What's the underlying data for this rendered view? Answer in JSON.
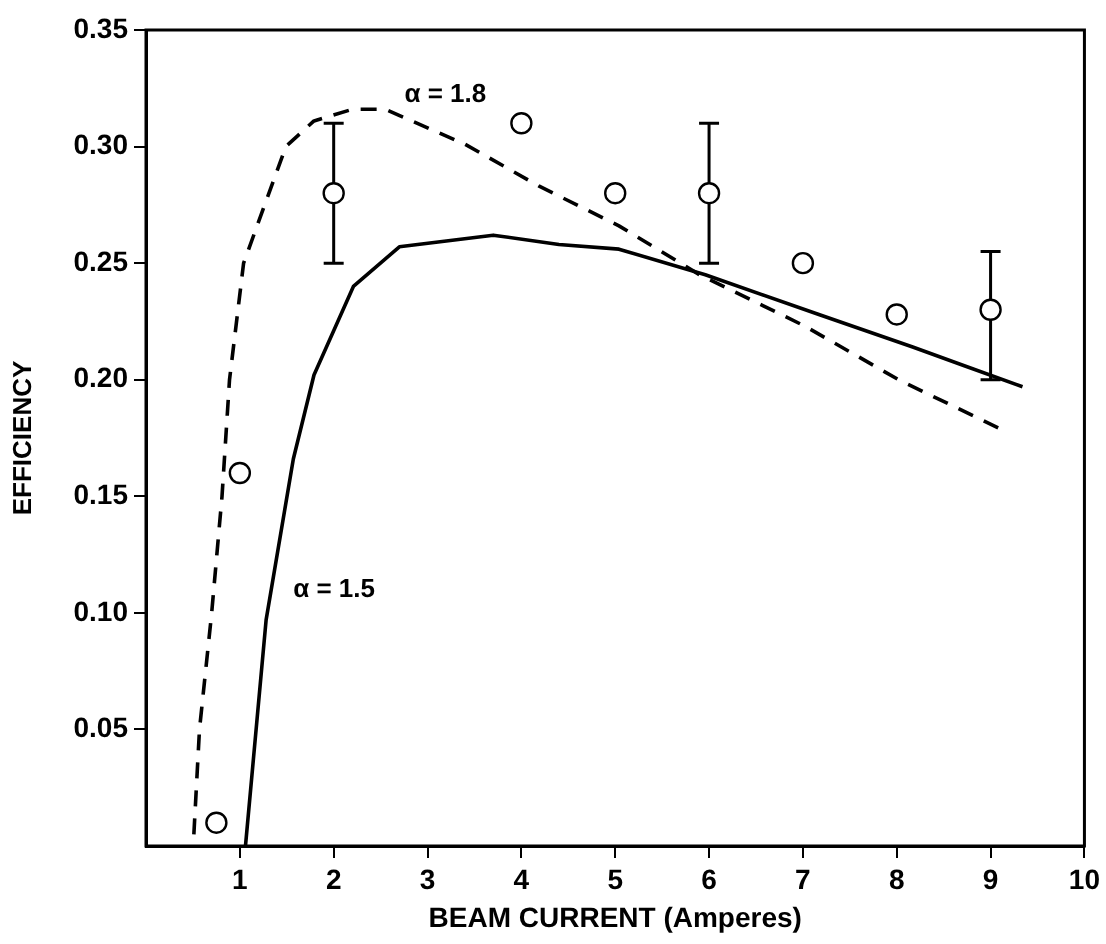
{
  "chart_data": {
    "type": "line",
    "xlabel": "BEAM CURRENT (Amperes)",
    "ylabel": "EFFICIENCY",
    "xlim": [
      0,
      10
    ],
    "ylim": [
      0,
      0.35
    ],
    "xticks": [
      1,
      2,
      3,
      4,
      5,
      6,
      7,
      8,
      9,
      10
    ],
    "yticks": [
      {
        "value": 0.05,
        "label": "0.05"
      },
      {
        "value": 0.1,
        "label": "0.10"
      },
      {
        "value": 0.15,
        "label": "0.15"
      },
      {
        "value": 0.2,
        "label": "0.20"
      },
      {
        "value": 0.25,
        "label": "0.25"
      },
      {
        "value": 0.3,
        "label": "0.30"
      },
      {
        "value": 0.35,
        "label": "0.35"
      }
    ],
    "grid": false,
    "legend": false,
    "series": [
      {
        "name": "α = 1.8",
        "color": "#000000",
        "line_style": "dashed",
        "marker": "none",
        "x": [
          0.51,
          0.57,
          0.7,
          0.81,
          0.89,
          1.04,
          1.49,
          1.79,
          2.2,
          2.55,
          3.4,
          4.19,
          5.04,
          5.9,
          7.02,
          8.02,
          9.15
        ],
        "values": [
          0.005,
          0.05,
          0.1,
          0.15,
          0.2,
          0.25,
          0.3,
          0.311,
          0.316,
          0.316,
          0.301,
          0.283,
          0.266,
          0.245,
          0.223,
          0.2,
          0.178
        ]
      },
      {
        "name": "α = 1.5",
        "color": "#000000",
        "line_style": "solid",
        "marker": "none",
        "x": [
          1.06,
          1.28,
          1.57,
          1.79,
          2.21,
          2.7,
          3.7,
          4.4,
          5.04,
          5.96,
          7.17,
          8.17,
          8.72,
          9.34
        ],
        "values": [
          0,
          0.097,
          0.166,
          0.202,
          0.24,
          0.257,
          0.262,
          0.258,
          0.256,
          0.245,
          0.228,
          0.214,
          0.206,
          0.197
        ]
      },
      {
        "type": "scatter",
        "color": "#000000",
        "marker": "circle",
        "x": [
          0.75,
          1,
          2,
          4,
          5,
          6,
          7,
          8,
          9
        ],
        "values": [
          0.01,
          0.16,
          0.28,
          0.31,
          0.28,
          0.28,
          0.25,
          0.228,
          0.23
        ],
        "errors": [
          null,
          null,
          [
            0.25,
            0.31
          ],
          null,
          null,
          [
            0.25,
            0.31
          ],
          null,
          null,
          [
            0.2,
            0.255
          ]
        ]
      }
    ]
  }
}
